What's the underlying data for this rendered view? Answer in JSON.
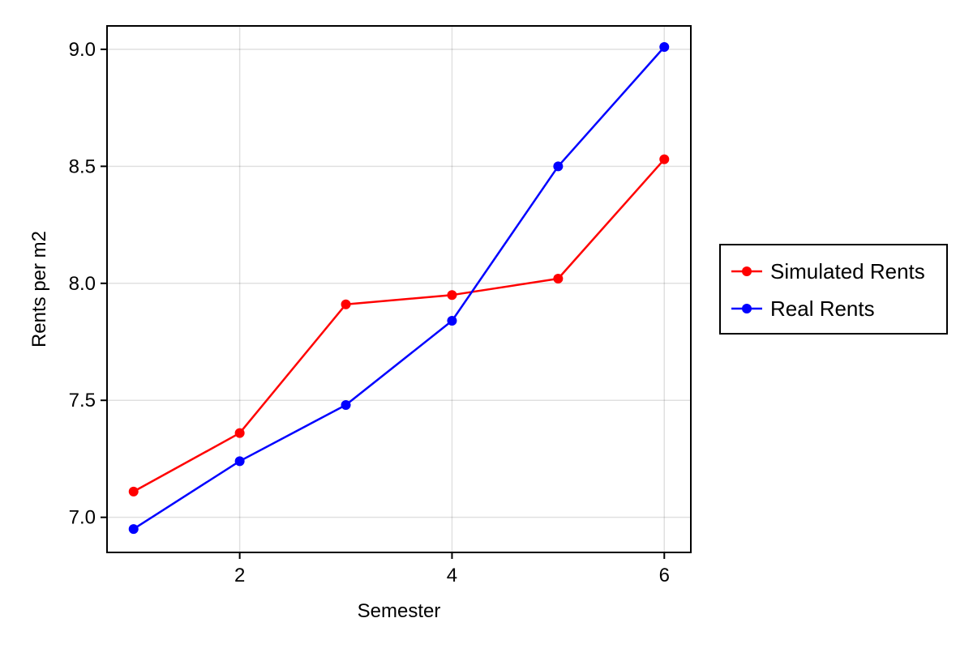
{
  "chart_data": {
    "type": "line",
    "title": "",
    "xlabel": "Semester",
    "ylabel": "Rents per m2",
    "xlim": [
      0.75,
      6.25
    ],
    "ylim": [
      6.85,
      9.1
    ],
    "xticks": [
      2,
      4,
      6
    ],
    "xtick_labels": [
      "2",
      "4",
      "6"
    ],
    "yticks": [
      7.0,
      7.5,
      8.0,
      8.5,
      9.0
    ],
    "ytick_labels": [
      "7.0",
      "7.5",
      "8.0",
      "8.5",
      "9.0"
    ],
    "grid": true,
    "legend_position": "right",
    "x": [
      1,
      2,
      3,
      4,
      5,
      6
    ],
    "series": [
      {
        "name": "Simulated Rents",
        "color": "#ff0000",
        "values": [
          7.11,
          7.36,
          7.91,
          7.95,
          8.02,
          8.53
        ]
      },
      {
        "name": "Real Rents",
        "color": "#0000ff",
        "values": [
          6.95,
          7.24,
          7.48,
          7.84,
          8.5,
          9.01
        ]
      }
    ]
  }
}
